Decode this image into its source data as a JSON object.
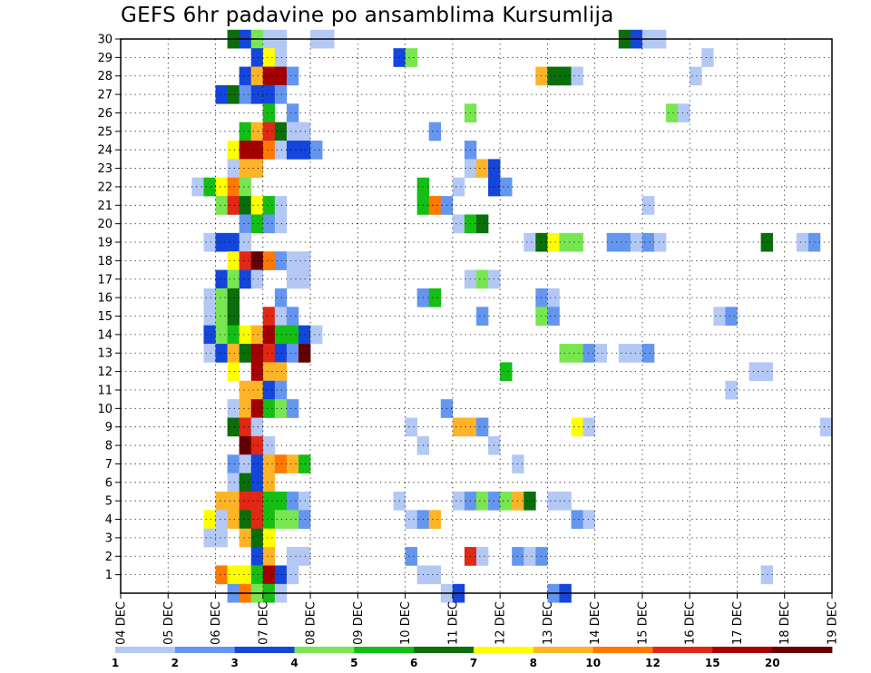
{
  "title": "GEFS 6hr padavine po ansamblima Kursumlija",
  "chart_data": {
    "type": "heatmap",
    "title": "GEFS 6hr padavine po ansamblima Kursumlija",
    "x_tick_labels": [
      "04 DEC",
      "05 DEC",
      "06 DEC",
      "07 DEC",
      "08 DEC",
      "09 DEC",
      "10 DEC",
      "11 DEC",
      "12 DEC",
      "13 DEC",
      "14 DEC",
      "15 DEC",
      "16 DEC",
      "17 DEC",
      "18 DEC",
      "19 DEC"
    ],
    "x_range_days": [
      0,
      15
    ],
    "x_step_hours": 6,
    "y_tick_labels": [
      "1",
      "2",
      "3",
      "4",
      "5",
      "6",
      "7",
      "8",
      "9",
      "10",
      "11",
      "12",
      "13",
      "14",
      "15",
      "16",
      "17",
      "18",
      "19",
      "20",
      "21",
      "22",
      "23",
      "24",
      "25",
      "26",
      "27",
      "28",
      "29",
      "30"
    ],
    "y_range_members": [
      0,
      30
    ],
    "grid": "dotted",
    "legend": {
      "placement": "bottom",
      "levels": [
        1,
        2,
        3,
        4,
        5,
        6,
        7,
        8,
        10,
        12,
        15,
        20
      ],
      "level_labels": [
        "1",
        "2",
        "3",
        "4",
        "5",
        "6",
        "7",
        "8",
        "10",
        "12",
        "15",
        "20"
      ],
      "colors": [
        "#b4c8f5",
        "#6496f0",
        "#1446dc",
        "#78e650",
        "#14be14",
        "#0a6e0a",
        "#ffff00",
        "#ffb428",
        "#ff7800",
        "#e12814",
        "#a50000",
        "#640000"
      ]
    },
    "cells": [
      [
        30,
        9,
        5
      ],
      [
        30,
        10,
        2
      ],
      [
        30,
        11,
        3
      ],
      [
        30,
        12,
        0
      ],
      [
        30,
        13,
        0
      ],
      [
        30,
        16,
        0
      ],
      [
        30,
        17,
        0
      ],
      [
        30,
        42,
        5
      ],
      [
        30,
        43,
        2
      ],
      [
        30,
        44,
        0
      ],
      [
        30,
        45,
        0
      ],
      [
        29,
        11,
        2
      ],
      [
        29,
        12,
        6
      ],
      [
        29,
        13,
        0
      ],
      [
        29,
        23,
        2
      ],
      [
        29,
        24,
        3
      ],
      [
        29,
        49,
        0
      ],
      [
        28,
        10,
        2
      ],
      [
        28,
        11,
        7
      ],
      [
        28,
        12,
        10
      ],
      [
        28,
        13,
        10
      ],
      [
        28,
        14,
        1
      ],
      [
        28,
        35,
        7
      ],
      [
        28,
        36,
        5
      ],
      [
        28,
        37,
        5
      ],
      [
        28,
        38,
        0
      ],
      [
        28,
        48,
        0
      ],
      [
        27,
        8,
        2
      ],
      [
        27,
        9,
        5
      ],
      [
        27,
        10,
        1
      ],
      [
        27,
        11,
        2
      ],
      [
        27,
        12,
        2
      ],
      [
        27,
        13,
        1
      ],
      [
        26,
        12,
        4
      ],
      [
        26,
        14,
        1
      ],
      [
        26,
        29,
        3
      ],
      [
        26,
        46,
        3
      ],
      [
        26,
        47,
        0
      ],
      [
        25,
        10,
        4
      ],
      [
        25,
        11,
        7
      ],
      [
        25,
        12,
        9
      ],
      [
        25,
        13,
        5
      ],
      [
        25,
        14,
        0
      ],
      [
        25,
        15,
        0
      ],
      [
        25,
        26,
        1
      ],
      [
        24,
        9,
        6
      ],
      [
        24,
        10,
        10
      ],
      [
        24,
        11,
        10
      ],
      [
        24,
        12,
        8
      ],
      [
        24,
        13,
        0
      ],
      [
        24,
        14,
        2
      ],
      [
        24,
        15,
        2
      ],
      [
        24,
        16,
        1
      ],
      [
        24,
        29,
        1
      ],
      [
        23,
        9,
        0
      ],
      [
        23,
        10,
        7
      ],
      [
        23,
        11,
        7
      ],
      [
        23,
        29,
        0
      ],
      [
        23,
        30,
        7
      ],
      [
        23,
        31,
        2
      ],
      [
        22,
        6,
        0
      ],
      [
        22,
        7,
        4
      ],
      [
        22,
        8,
        6
      ],
      [
        22,
        9,
        8
      ],
      [
        22,
        10,
        3
      ],
      [
        22,
        25,
        4
      ],
      [
        22,
        28,
        0
      ],
      [
        22,
        31,
        2
      ],
      [
        22,
        32,
        1
      ],
      [
        21,
        8,
        3
      ],
      [
        21,
        9,
        9
      ],
      [
        21,
        10,
        5
      ],
      [
        21,
        11,
        6
      ],
      [
        21,
        12,
        4
      ],
      [
        21,
        13,
        0
      ],
      [
        21,
        25,
        4
      ],
      [
        21,
        26,
        8
      ],
      [
        21,
        27,
        1
      ],
      [
        21,
        44,
        0
      ],
      [
        20,
        10,
        1
      ],
      [
        20,
        11,
        4
      ],
      [
        20,
        12,
        1
      ],
      [
        20,
        13,
        0
      ],
      [
        20,
        28,
        0
      ],
      [
        20,
        29,
        4
      ],
      [
        20,
        30,
        5
      ],
      [
        19,
        7,
        0
      ],
      [
        19,
        8,
        2
      ],
      [
        19,
        9,
        2
      ],
      [
        19,
        10,
        0
      ],
      [
        19,
        34,
        0
      ],
      [
        19,
        35,
        5
      ],
      [
        19,
        36,
        6
      ],
      [
        19,
        37,
        3
      ],
      [
        19,
        38,
        3
      ],
      [
        19,
        41,
        1
      ],
      [
        19,
        42,
        1
      ],
      [
        19,
        43,
        0
      ],
      [
        19,
        44,
        1
      ],
      [
        19,
        45,
        0
      ],
      [
        19,
        54,
        5
      ],
      [
        19,
        57,
        0
      ],
      [
        19,
        58,
        1
      ],
      [
        18,
        9,
        6
      ],
      [
        18,
        10,
        9
      ],
      [
        18,
        11,
        11
      ],
      [
        18,
        12,
        8
      ],
      [
        18,
        13,
        1
      ],
      [
        18,
        14,
        0
      ],
      [
        18,
        15,
        0
      ],
      [
        17,
        8,
        2
      ],
      [
        17,
        9,
        3
      ],
      [
        17,
        10,
        2
      ],
      [
        17,
        11,
        0
      ],
      [
        17,
        14,
        0
      ],
      [
        17,
        15,
        0
      ],
      [
        17,
        29,
        0
      ],
      [
        17,
        30,
        3
      ],
      [
        17,
        31,
        0
      ],
      [
        16,
        7,
        0
      ],
      [
        16,
        8,
        3
      ],
      [
        16,
        9,
        5
      ],
      [
        16,
        13,
        1
      ],
      [
        16,
        25,
        1
      ],
      [
        16,
        26,
        4
      ],
      [
        16,
        35,
        1
      ],
      [
        16,
        36,
        0
      ],
      [
        15,
        7,
        0
      ],
      [
        15,
        8,
        3
      ],
      [
        15,
        9,
        5
      ],
      [
        15,
        12,
        9
      ],
      [
        15,
        13,
        0
      ],
      [
        15,
        14,
        1
      ],
      [
        15,
        30,
        1
      ],
      [
        15,
        35,
        3
      ],
      [
        15,
        36,
        1
      ],
      [
        15,
        50,
        0
      ],
      [
        15,
        51,
        1
      ],
      [
        14,
        7,
        2
      ],
      [
        14,
        8,
        3
      ],
      [
        14,
        9,
        4
      ],
      [
        14,
        10,
        6
      ],
      [
        14,
        11,
        7
      ],
      [
        14,
        12,
        10
      ],
      [
        14,
        13,
        4
      ],
      [
        14,
        14,
        4
      ],
      [
        14,
        15,
        2
      ],
      [
        14,
        16,
        0
      ],
      [
        13,
        7,
        0
      ],
      [
        13,
        8,
        2
      ],
      [
        13,
        9,
        7
      ],
      [
        13,
        10,
        5
      ],
      [
        13,
        11,
        10
      ],
      [
        13,
        12,
        9
      ],
      [
        13,
        13,
        2
      ],
      [
        13,
        14,
        1
      ],
      [
        13,
        15,
        11
      ],
      [
        13,
        37,
        3
      ],
      [
        13,
        38,
        3
      ],
      [
        13,
        39,
        1
      ],
      [
        13,
        40,
        0
      ],
      [
        13,
        42,
        0
      ],
      [
        13,
        43,
        0
      ],
      [
        13,
        44,
        1
      ],
      [
        12,
        9,
        6
      ],
      [
        12,
        11,
        10
      ],
      [
        12,
        12,
        7
      ],
      [
        12,
        13,
        7
      ],
      [
        12,
        32,
        4
      ],
      [
        12,
        53,
        0
      ],
      [
        12,
        54,
        0
      ],
      [
        11,
        10,
        7
      ],
      [
        11,
        11,
        7
      ],
      [
        11,
        12,
        2
      ],
      [
        11,
        13,
        1
      ],
      [
        11,
        51,
        0
      ],
      [
        10,
        9,
        0
      ],
      [
        10,
        10,
        7
      ],
      [
        10,
        11,
        10
      ],
      [
        10,
        12,
        4
      ],
      [
        10,
        13,
        3
      ],
      [
        10,
        14,
        1
      ],
      [
        10,
        27,
        1
      ],
      [
        9,
        9,
        5
      ],
      [
        9,
        10,
        9
      ],
      [
        9,
        11,
        0
      ],
      [
        9,
        24,
        0
      ],
      [
        9,
        28,
        7
      ],
      [
        9,
        29,
        7
      ],
      [
        9,
        30,
        1
      ],
      [
        9,
        38,
        6
      ],
      [
        9,
        39,
        0
      ],
      [
        9,
        59,
        0
      ],
      [
        8,
        10,
        11
      ],
      [
        8,
        11,
        9
      ],
      [
        8,
        12,
        0
      ],
      [
        8,
        25,
        0
      ],
      [
        8,
        31,
        0
      ],
      [
        7,
        9,
        1
      ],
      [
        7,
        10,
        0
      ],
      [
        7,
        11,
        2
      ],
      [
        7,
        12,
        7
      ],
      [
        7,
        13,
        8
      ],
      [
        7,
        14,
        7
      ],
      [
        7,
        15,
        4
      ],
      [
        7,
        33,
        0
      ],
      [
        6,
        9,
        0
      ],
      [
        6,
        10,
        5
      ],
      [
        6,
        11,
        2
      ],
      [
        6,
        12,
        7
      ],
      [
        5,
        8,
        7
      ],
      [
        5,
        9,
        7
      ],
      [
        5,
        10,
        9
      ],
      [
        5,
        11,
        9
      ],
      [
        5,
        12,
        4
      ],
      [
        5,
        13,
        4
      ],
      [
        5,
        14,
        1
      ],
      [
        5,
        15,
        0
      ],
      [
        5,
        23,
        0
      ],
      [
        5,
        28,
        0
      ],
      [
        5,
        29,
        1
      ],
      [
        5,
        30,
        3
      ],
      [
        5,
        31,
        1
      ],
      [
        5,
        32,
        3
      ],
      [
        5,
        33,
        7
      ],
      [
        5,
        34,
        5
      ],
      [
        5,
        36,
        0
      ],
      [
        5,
        37,
        0
      ],
      [
        4,
        7,
        6
      ],
      [
        4,
        8,
        0
      ],
      [
        4,
        9,
        7
      ],
      [
        4,
        10,
        5
      ],
      [
        4,
        11,
        9
      ],
      [
        4,
        12,
        4
      ],
      [
        4,
        13,
        3
      ],
      [
        4,
        14,
        3
      ],
      [
        4,
        15,
        1
      ],
      [
        4,
        24,
        0
      ],
      [
        4,
        25,
        1
      ],
      [
        4,
        26,
        7
      ],
      [
        4,
        38,
        1
      ],
      [
        4,
        39,
        0
      ],
      [
        3,
        7,
        0
      ],
      [
        3,
        8,
        0
      ],
      [
        3,
        10,
        7
      ],
      [
        3,
        11,
        5
      ],
      [
        3,
        12,
        6
      ],
      [
        2,
        11,
        2
      ],
      [
        2,
        12,
        7
      ],
      [
        2,
        14,
        0
      ],
      [
        2,
        15,
        0
      ],
      [
        2,
        24,
        1
      ],
      [
        2,
        29,
        9
      ],
      [
        2,
        30,
        0
      ],
      [
        2,
        33,
        1
      ],
      [
        2,
        34,
        0
      ],
      [
        2,
        35,
        1
      ],
      [
        1,
        8,
        8
      ],
      [
        1,
        9,
        6
      ],
      [
        1,
        10,
        6
      ],
      [
        1,
        11,
        4
      ],
      [
        1,
        12,
        10
      ],
      [
        1,
        13,
        2
      ],
      [
        1,
        14,
        0
      ],
      [
        1,
        25,
        0
      ],
      [
        1,
        26,
        0
      ],
      [
        1,
        54,
        0
      ],
      [
        0,
        9,
        1
      ],
      [
        0,
        10,
        8
      ],
      [
        0,
        11,
        3
      ],
      [
        0,
        12,
        4
      ],
      [
        0,
        13,
        0
      ],
      [
        0,
        27,
        0
      ],
      [
        0,
        28,
        2
      ],
      [
        0,
        36,
        1
      ],
      [
        0,
        37,
        2
      ]
    ]
  }
}
